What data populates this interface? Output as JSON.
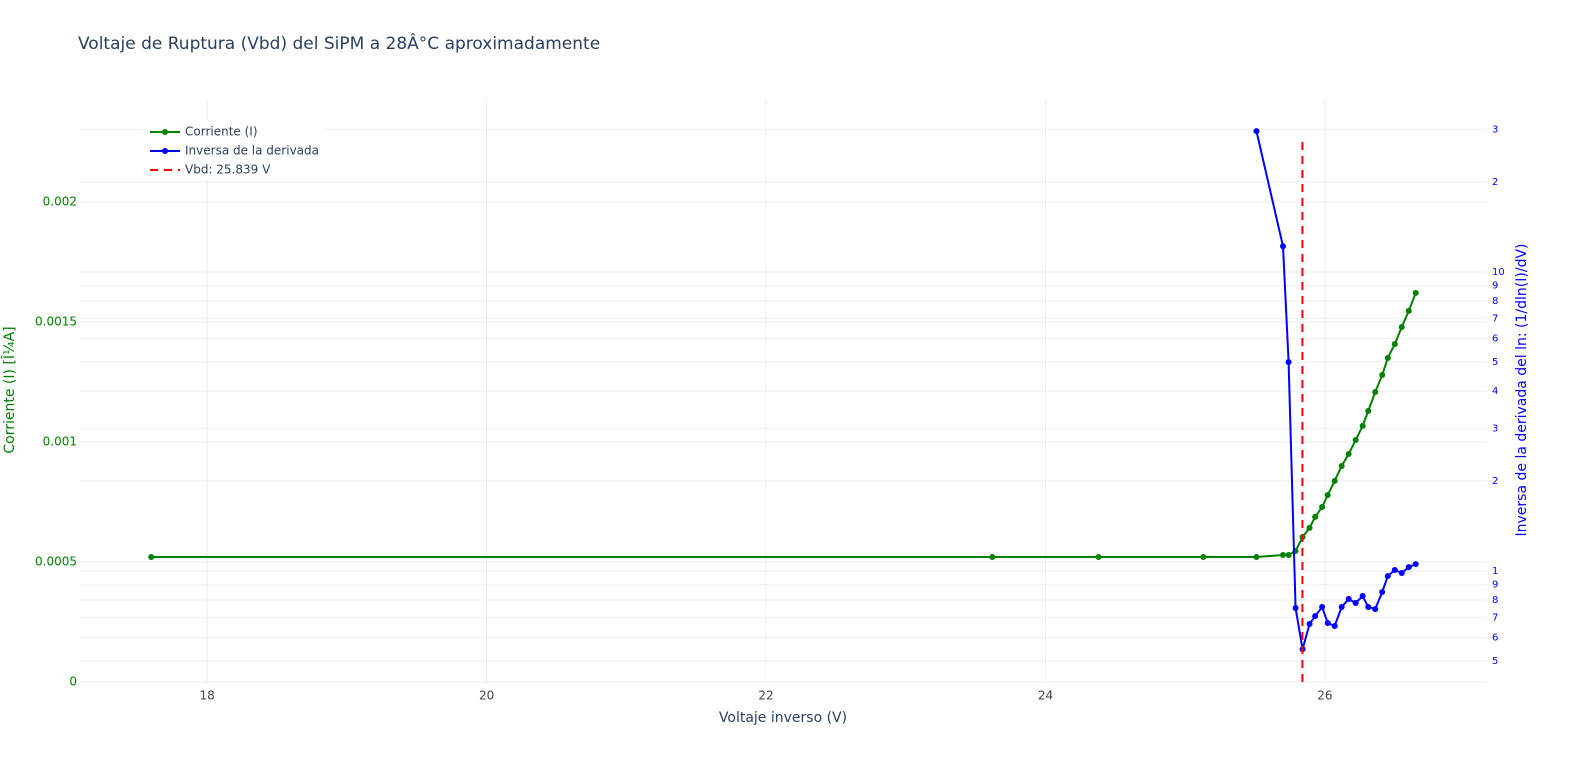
{
  "chart_data": {
    "type": "line",
    "title": "Voltaje de Ruptura (Vbd) del SiPM a 28Â°C aproximadamente",
    "x_label": "Voltaje inverso (V)",
    "y_label": "Corriente (I) [Î¼A]",
    "y2_label": "Inversa de la derivada del ln: (1/dln(I)/dV)",
    "y_label_color": "green",
    "y2_label_color": "blue",
    "xlim": [
      17.09,
      27.16
    ],
    "xticks": [
      18,
      20,
      22,
      24,
      26
    ],
    "ylim": [
      0,
      0.002433
    ],
    "yticks": [
      0,
      0.0005,
      0.001,
      0.0015,
      0.002
    ],
    "y2lim": [
      0.4255,
      38.2
    ],
    "y2log": true,
    "y2ticks": [
      {
        "value": 0.5,
        "label": "5"
      },
      {
        "value": 0.6,
        "label": "6"
      },
      {
        "value": 0.7,
        "label": "7"
      },
      {
        "value": 0.8,
        "label": "8"
      },
      {
        "value": 0.9,
        "label": "9"
      },
      1,
      2,
      3,
      4,
      5,
      6,
      7,
      8,
      9,
      10,
      {
        "value": 20,
        "label": "2"
      },
      {
        "value": 30,
        "label": "3"
      }
    ],
    "grid": true,
    "legend": "top-left",
    "series": [
      {
        "name": "Corriente (I)",
        "color": "green",
        "axis": "y",
        "markers": true,
        "dash": false,
        "x": [
          17.6,
          23.62,
          24.38,
          25.13,
          25.51,
          25.7,
          25.74,
          25.79,
          25.84,
          25.89,
          25.93,
          25.98,
          26.02,
          26.07,
          26.12,
          26.17,
          26.22,
          26.27,
          26.31,
          26.36,
          26.41,
          26.45,
          26.5,
          26.55,
          26.6,
          26.65
        ],
        "values": [
          0.000521,
          0.000521,
          0.000521,
          0.000521,
          0.000521,
          0.000529,
          0.000529,
          0.000546,
          0.000604,
          0.000642,
          0.000688,
          0.000729,
          0.000779,
          0.000838,
          0.0009,
          0.00095,
          0.001008,
          0.001067,
          0.001129,
          0.001208,
          0.001279,
          0.00135,
          0.001408,
          0.001479,
          0.001546,
          0.001621
        ]
      },
      {
        "name": "Inversa de la derivada",
        "color": "blue",
        "axis": "y2",
        "markers": true,
        "dash": false,
        "x": [
          25.51,
          25.7,
          25.74,
          25.79,
          25.84,
          25.89,
          25.93,
          25.98,
          26.02,
          26.07,
          26.12,
          26.17,
          26.22,
          26.27,
          26.31,
          26.36,
          26.41,
          26.45,
          26.5,
          26.55,
          26.6,
          26.65
        ],
        "values": [
          29.6,
          12.2,
          5.0,
          0.752,
          0.548,
          0.665,
          0.707,
          0.758,
          0.67,
          0.655,
          0.758,
          0.806,
          0.782,
          0.825,
          0.758,
          0.746,
          0.851,
          0.962,
          1.008,
          0.985,
          1.031,
          1.055
        ]
      },
      {
        "name": "Vbd: 25.839 V",
        "color": "red",
        "axis": "y2",
        "markers": false,
        "dash": true,
        "x": [
          25.839,
          25.839
        ],
        "values": [
          0.4255,
          28.1
        ]
      }
    ]
  }
}
